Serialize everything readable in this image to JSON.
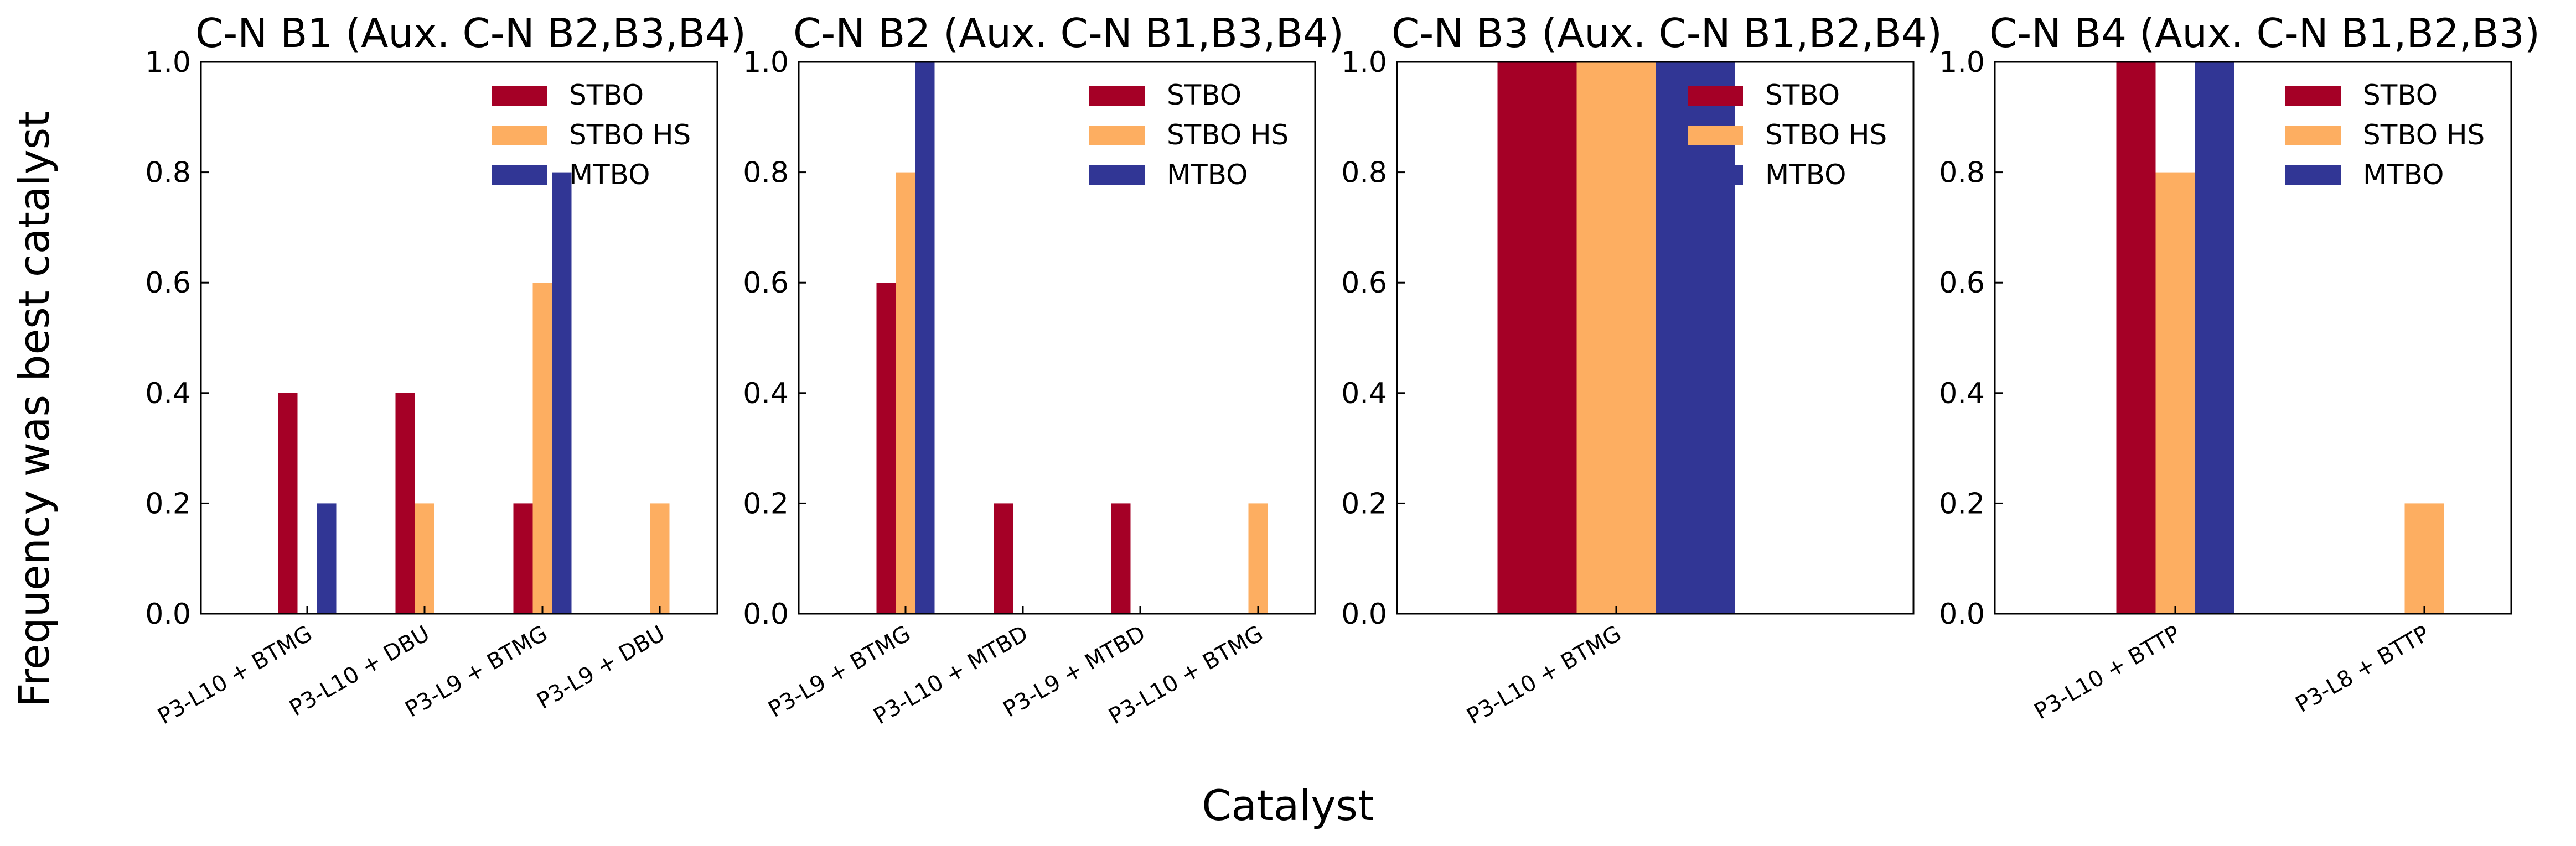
{
  "figure": {
    "xlabel": "Catalyst",
    "ylabel": "Frequency was best catalyst"
  },
  "legend": {
    "placement": "upper right",
    "entries": [
      {
        "name": "STBO",
        "color": "#a50026"
      },
      {
        "name": "STBO HS",
        "color": "#fdae61"
      },
      {
        "name": "MTBO",
        "color": "#313695"
      }
    ]
  },
  "chart_data": [
    {
      "type": "bar",
      "title": "C-N B1 (Aux. C-N B2,B3,B4)",
      "categories": [
        "P3-L10 + BTMG",
        "P3-L10 + DBU",
        "P3-L9 + BTMG",
        "P3-L9 + DBU"
      ],
      "series": [
        {
          "name": "STBO",
          "values": [
            0.4,
            0.4,
            0.2,
            0.0
          ]
        },
        {
          "name": "STBO HS",
          "values": [
            0.0,
            0.2,
            0.6,
            0.2
          ]
        },
        {
          "name": "MTBO",
          "values": [
            0.2,
            0.0,
            0.8,
            0.0
          ]
        }
      ],
      "ylim": [
        0,
        1.0
      ],
      "yticks": [
        "0.0",
        "0.2",
        "0.4",
        "0.6",
        "0.8",
        "1.0"
      ],
      "grid": false
    },
    {
      "type": "bar",
      "title": "C-N B2 (Aux. C-N B1,B3,B4)",
      "categories": [
        "P3-L9 + BTMG",
        "P3-L10 + MTBD",
        "P3-L9 + MTBD",
        "P3-L10 + BTMG"
      ],
      "series": [
        {
          "name": "STBO",
          "values": [
            0.6,
            0.2,
            0.2,
            0.0
          ]
        },
        {
          "name": "STBO HS",
          "values": [
            0.8,
            0.0,
            0.0,
            0.2
          ]
        },
        {
          "name": "MTBO",
          "values": [
            1.0,
            0.0,
            0.0,
            0.0
          ]
        }
      ],
      "ylim": [
        0,
        1.0
      ],
      "yticks": [
        "0.0",
        "0.2",
        "0.4",
        "0.6",
        "0.8",
        "1.0"
      ],
      "grid": false
    },
    {
      "type": "bar",
      "title": "C-N B3 (Aux. C-N B1,B2,B4)",
      "categories": [
        "P3-L10 + BTMG"
      ],
      "series": [
        {
          "name": "STBO",
          "values": [
            1.0
          ]
        },
        {
          "name": "STBO HS",
          "values": [
            1.0
          ]
        },
        {
          "name": "MTBO",
          "values": [
            1.0
          ]
        }
      ],
      "ylim": [
        0,
        1.0
      ],
      "yticks": [
        "0.0",
        "0.2",
        "0.4",
        "0.6",
        "0.8",
        "1.0"
      ],
      "grid": false
    },
    {
      "type": "bar",
      "title": "C-N B4 (Aux. C-N B1,B2,B3)",
      "categories": [
        "P3-L10 + BTTP",
        "P3-L8 + BTTP"
      ],
      "series": [
        {
          "name": "STBO",
          "values": [
            1.0,
            0.0
          ]
        },
        {
          "name": "STBO HS",
          "values": [
            0.8,
            0.2
          ]
        },
        {
          "name": "MTBO",
          "values": [
            1.0,
            0.0
          ]
        }
      ],
      "ylim": [
        0,
        1.0
      ],
      "yticks": [
        "0.0",
        "0.2",
        "0.4",
        "0.6",
        "0.8",
        "1.0"
      ],
      "grid": false
    }
  ]
}
